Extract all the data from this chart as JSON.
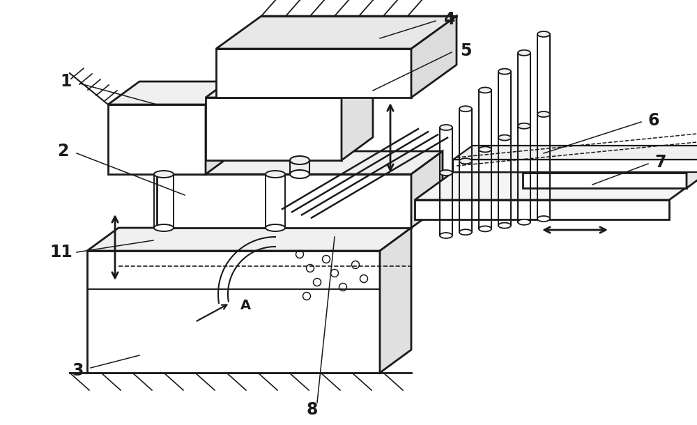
{
  "bg": "#ffffff",
  "lc": "#1a1a1a",
  "lw": 1.6,
  "lw2": 2.0,
  "fig_w": 10.0,
  "fig_h": 6.1
}
